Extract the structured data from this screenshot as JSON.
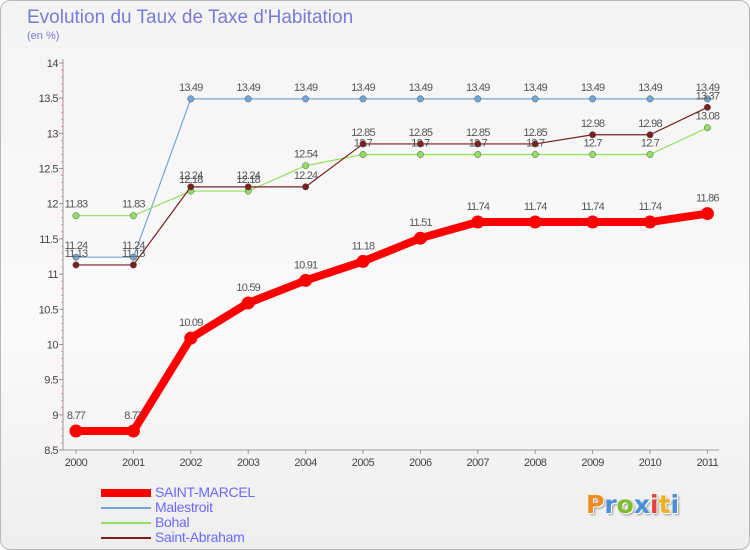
{
  "title": "Evolution du Taux de Taxe d'Habitation",
  "subtitle": "(en %)",
  "logo": {
    "text": "Proxiti",
    "colors": [
      "#f08c1c",
      "#4a8fd8",
      "#7cbf2e",
      "#4a8fd8",
      "#e8403a",
      "#f0b020",
      "#4a8fd8"
    ]
  },
  "chart_data": {
    "type": "line",
    "title": "Evolution du Taux de Taxe d'Habitation",
    "subtitle": "(en %)",
    "x": [
      2000,
      2001,
      2002,
      2003,
      2004,
      2005,
      2006,
      2007,
      2008,
      2009,
      2010,
      2011
    ],
    "ylim": [
      8.5,
      14
    ],
    "y_ticks": [
      8.5,
      9,
      9.5,
      10,
      10.5,
      11,
      11.5,
      12,
      12.5,
      13,
      13.5,
      14
    ],
    "grid": false,
    "legend_position": "bottom-left",
    "series": [
      {
        "name": "SAINT-MARCEL",
        "color": "#ff0000",
        "values": [
          8.77,
          8.77,
          10.09,
          10.59,
          10.91,
          11.18,
          11.51,
          11.74,
          11.74,
          11.74,
          11.74,
          11.86
        ]
      },
      {
        "name": "Malestroit",
        "color": "#6fa8d8",
        "values": [
          11.24,
          11.24,
          13.49,
          13.49,
          13.49,
          13.49,
          13.49,
          13.49,
          13.49,
          13.49,
          13.49,
          13.49
        ]
      },
      {
        "name": "Bohal",
        "color": "#90e060",
        "values": [
          11.83,
          11.83,
          12.18,
          12.18,
          12.54,
          12.7,
          12.7,
          12.7,
          12.7,
          12.7,
          12.7,
          13.08
        ]
      },
      {
        "name": "Saint-Abraham",
        "color": "#7a2020",
        "values": [
          11.13,
          11.13,
          12.24,
          12.24,
          12.24,
          12.85,
          12.85,
          12.85,
          12.85,
          12.98,
          12.98,
          13.37
        ]
      }
    ]
  }
}
